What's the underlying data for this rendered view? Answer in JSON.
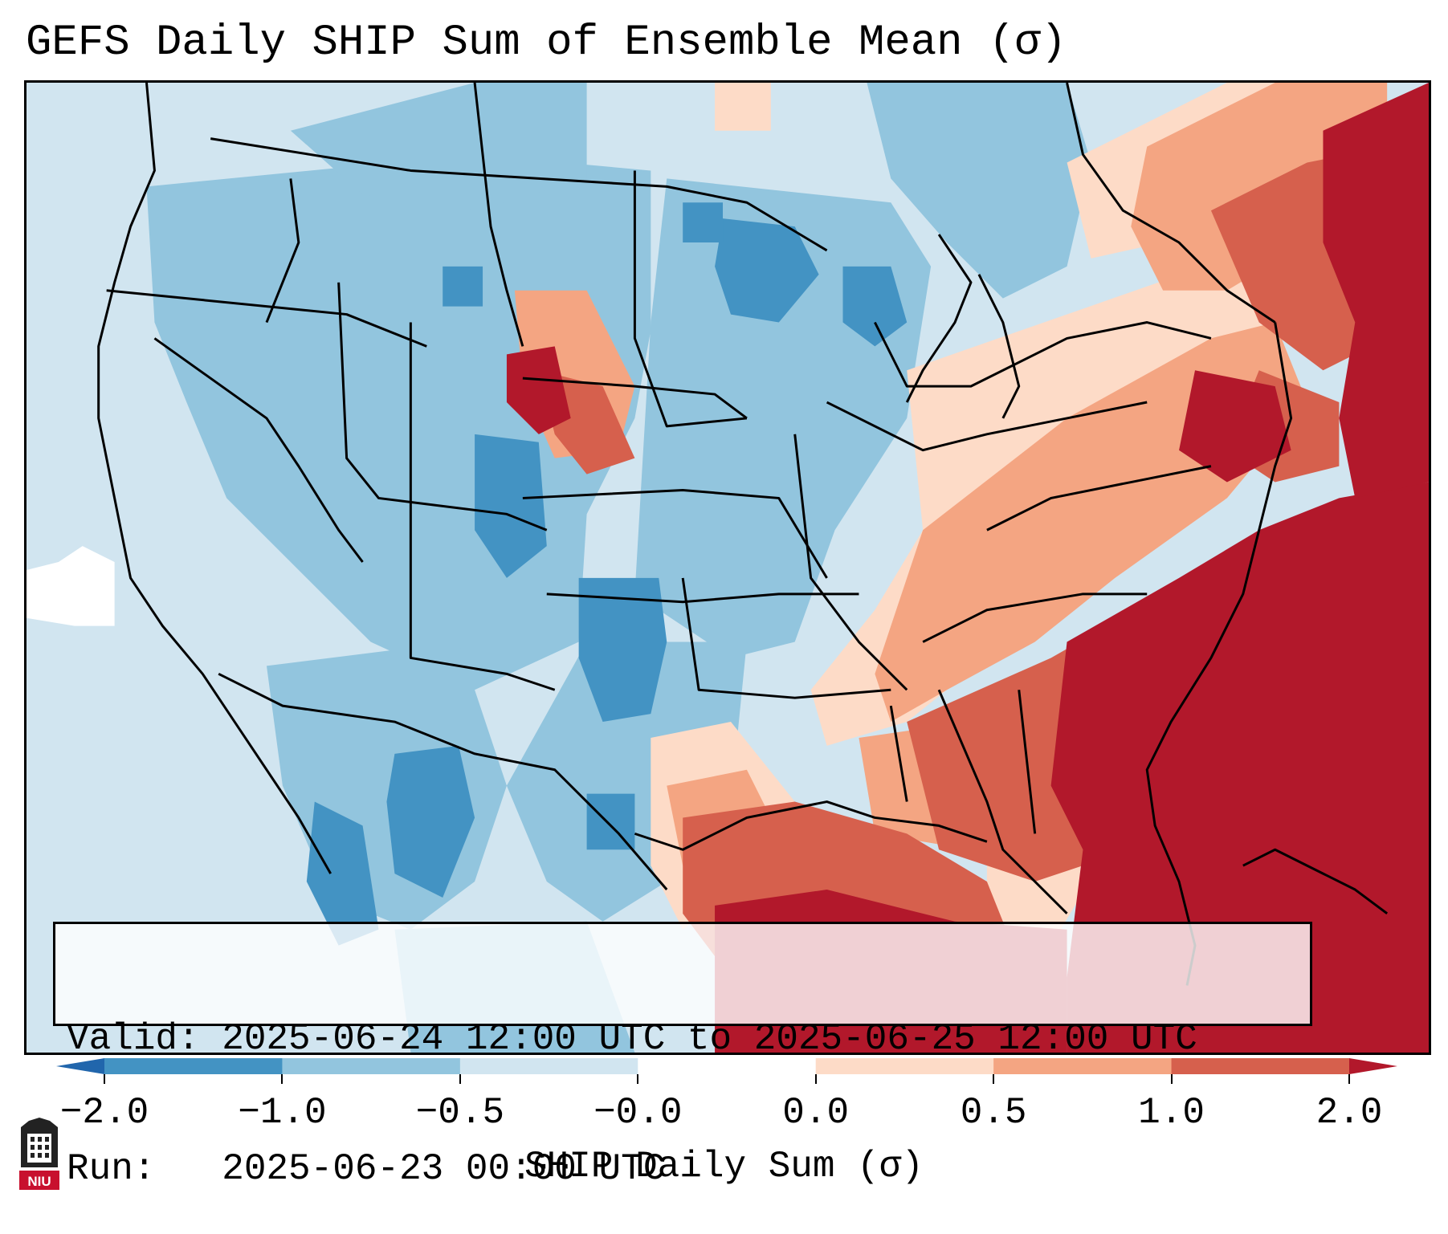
{
  "title": "GEFS Daily SHIP Sum of Ensemble Mean (σ)",
  "info": {
    "valid_line": "Valid: 2025-06-24 12:00 UTC to 2025-06-25 12:00 UTC",
    "run_line": "Run:   2025-06-23 00:00 UTC"
  },
  "colorbar": {
    "label": "SHIP Daily Sum (σ)",
    "ticks": [
      "−2.0",
      "−1.0",
      "−0.5",
      "−0.0",
      "0.0",
      "0.5",
      "1.0",
      "2.0"
    ],
    "colors": [
      "#4393c3",
      "#92c5de",
      "#d1e5f0",
      "#ffffff",
      "#fddbc7",
      "#f4a582",
      "#d6604d"
    ],
    "under_color": "#2166ac",
    "over_color": "#b2182b"
  },
  "palette": {
    "strong_neg": "#4393c3",
    "mod_neg": "#92c5de",
    "weak_neg": "#d1e5f0",
    "neutral": "#ffffff",
    "weak_pos": "#fddbc7",
    "mod_pos": "#f4a582",
    "strong_pos": "#d6604d",
    "extreme_pos": "#b2182b"
  },
  "logo": {
    "text": "NIU",
    "color": "#c8102e"
  }
}
